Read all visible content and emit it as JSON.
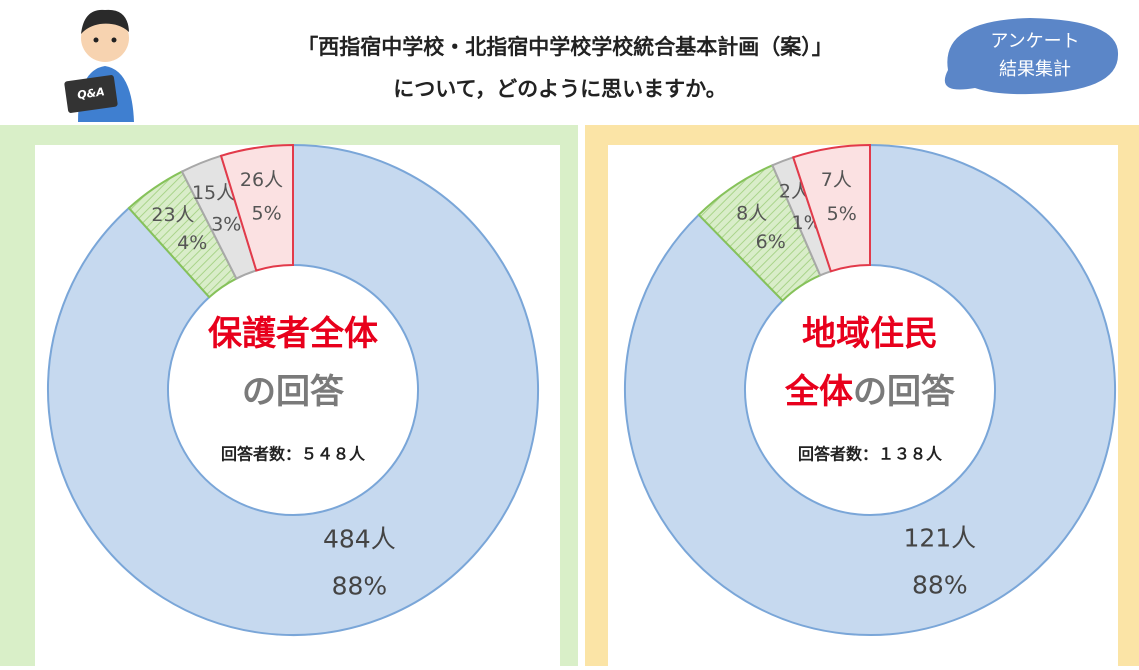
{
  "header": {
    "title_lines": [
      "「西指宿中学校・北指宿中学校学校統合基本計画（案）」",
      "について，どのように思いますか。"
    ],
    "badge_lines": [
      "アンケート",
      "結果集計"
    ],
    "icon_text": "Q&A"
  },
  "chart_data": [
    {
      "type": "donut",
      "panel_color": "#d9efc8",
      "center_lines": [
        [
          {
            "text": "保護者全体",
            "color": "#e8001c"
          }
        ],
        [
          {
            "text": "の回答",
            "color": "#7a7a7a"
          }
        ]
      ],
      "respondents": "回答者数：５４８人",
      "values": [
        484,
        23,
        15,
        26
      ],
      "value_labels": [
        "484人",
        "23人",
        "15人",
        "26人"
      ],
      "percent_labels": [
        "88%",
        "4%",
        "3%",
        "5%"
      ],
      "colors": [
        "#c6d9ef",
        "#d9edc9",
        "#e3e3e3",
        "#fbe1e2"
      ],
      "edge_colors": [
        "#7aa6d8",
        "#86c25a",
        "#a8a8a8",
        "#e23a4a"
      ]
    },
    {
      "type": "donut",
      "panel_color": "#fbe4a6",
      "center_lines": [
        [
          {
            "text": "地域住民",
            "color": "#e8001c"
          }
        ],
        [
          {
            "text": "全体",
            "color": "#e8001c"
          },
          {
            "text": "の回答",
            "color": "#7a7a7a"
          }
        ]
      ],
      "respondents": "回答者数：１３８人",
      "values": [
        121,
        8,
        2,
        7
      ],
      "value_labels": [
        "121人",
        "8人",
        "2人",
        "7人"
      ],
      "percent_labels": [
        "88%",
        "6%",
        "1%",
        "5%"
      ],
      "colors": [
        "#c6d9ef",
        "#d9edc9",
        "#e3e3e3",
        "#fbe1e2"
      ],
      "edge_colors": [
        "#7aa6d8",
        "#86c25a",
        "#a8a8a8",
        "#e23a4a"
      ]
    }
  ]
}
